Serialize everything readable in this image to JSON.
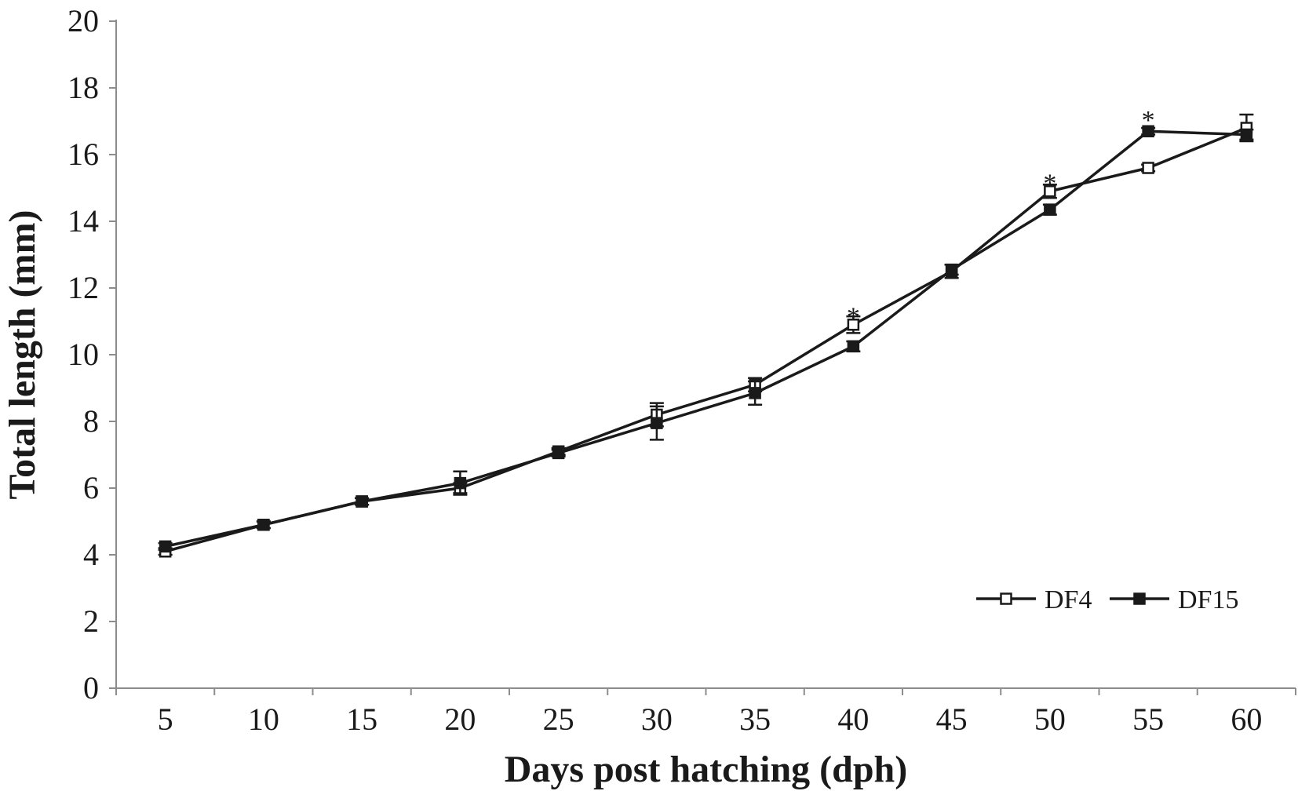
{
  "chart_data": {
    "type": "line",
    "xlabel": "Days post hatching (dph)",
    "ylabel": "Total length (mm)",
    "categories": [
      "5",
      "10",
      "15",
      "20",
      "25",
      "30",
      "35",
      "40",
      "45",
      "50",
      "55",
      "60"
    ],
    "yticks": [
      "0",
      "2",
      "4",
      "6",
      "8",
      "10",
      "12",
      "14",
      "16",
      "18",
      "20"
    ],
    "ylim": [
      0,
      20
    ],
    "grid": false,
    "legend_position": "bottom-right",
    "series": [
      {
        "name": "DF4",
        "marker": "open-square",
        "color": "#1a1a1a",
        "values": [
          4.1,
          4.9,
          5.6,
          6.0,
          7.1,
          8.2,
          9.1,
          10.9,
          12.5,
          14.9,
          15.6,
          16.8
        ],
        "errors": [
          0.1,
          0.1,
          0.1,
          0.15,
          0.1,
          0.35,
          0.2,
          0.25,
          0.2,
          0.2,
          0.1,
          0.4
        ]
      },
      {
        "name": "DF15",
        "marker": "filled-square",
        "color": "#1a1a1a",
        "values": [
          4.25,
          4.9,
          5.6,
          6.15,
          7.05,
          7.95,
          8.85,
          10.25,
          12.55,
          14.35,
          16.7,
          16.6
        ],
        "errors": [
          0.1,
          0.1,
          0.1,
          0.35,
          0.1,
          0.5,
          0.35,
          0.15,
          0.15,
          0.15,
          0.1,
          0.15
        ]
      }
    ],
    "annotations": [
      {
        "category": "40",
        "value": 11.4,
        "text": "*"
      },
      {
        "category": "50",
        "value": 15.4,
        "text": "*"
      },
      {
        "category": "55",
        "value": 17.3,
        "text": "*"
      }
    ]
  }
}
